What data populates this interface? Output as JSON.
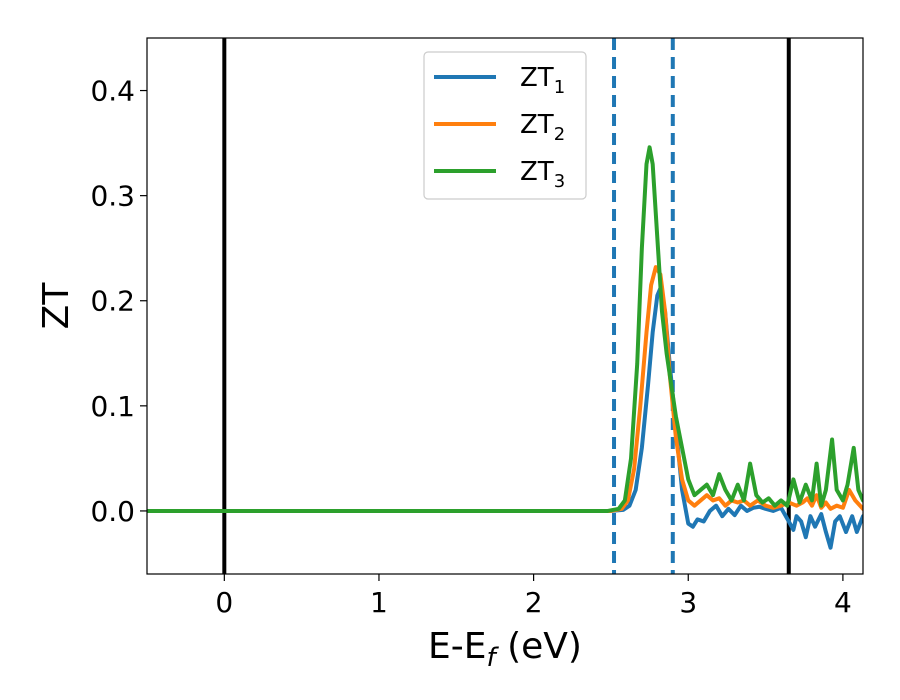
{
  "chart_data": {
    "type": "line",
    "title": "",
    "xlabel": {
      "main": "E-E",
      "sub": "f",
      "suffix": " (eV)"
    },
    "ylabel": "ZT",
    "xlim": [
      -0.5,
      4.13
    ],
    "ylim": [
      -0.06,
      0.45
    ],
    "xticks": [
      0,
      1,
      2,
      3,
      4
    ],
    "yticks": [
      0.0,
      0.1,
      0.2,
      0.3,
      0.4
    ],
    "xtick_labels": [
      "0",
      "1",
      "2",
      "3",
      "4"
    ],
    "ytick_labels": [
      "0.0",
      "0.1",
      "0.2",
      "0.3",
      "0.4"
    ],
    "grid": false,
    "legend_position": "top-center",
    "vlines_solid": [
      0.0,
      3.65
    ],
    "vlines_dashed": [
      2.52,
      2.9
    ],
    "series": [
      {
        "name": "ZT",
        "subscript": "1",
        "color": "#1f77b4",
        "points": [
          [
            -0.5,
            0.0
          ],
          [
            2.5,
            0.0
          ],
          [
            2.58,
            0.001
          ],
          [
            2.62,
            0.005
          ],
          [
            2.66,
            0.02
          ],
          [
            2.7,
            0.06
          ],
          [
            2.74,
            0.12
          ],
          [
            2.77,
            0.17
          ],
          [
            2.8,
            0.205
          ],
          [
            2.82,
            0.212
          ],
          [
            2.85,
            0.19
          ],
          [
            2.88,
            0.14
          ],
          [
            2.92,
            0.08
          ],
          [
            2.96,
            0.02
          ],
          [
            3.0,
            -0.012
          ],
          [
            3.03,
            -0.015
          ],
          [
            3.06,
            -0.008
          ],
          [
            3.1,
            -0.01
          ],
          [
            3.14,
            0.0
          ],
          [
            3.18,
            0.005
          ],
          [
            3.22,
            -0.005
          ],
          [
            3.26,
            0.002
          ],
          [
            3.3,
            -0.004
          ],
          [
            3.34,
            0.005
          ],
          [
            3.38,
            0.0
          ],
          [
            3.42,
            0.003
          ],
          [
            3.46,
            0.004
          ],
          [
            3.5,
            0.002
          ],
          [
            3.55,
            0.0
          ],
          [
            3.6,
            0.003
          ],
          [
            3.65,
            -0.01
          ],
          [
            3.68,
            -0.018
          ],
          [
            3.7,
            -0.005
          ],
          [
            3.73,
            -0.01
          ],
          [
            3.76,
            -0.025
          ],
          [
            3.79,
            -0.005
          ],
          [
            3.82,
            -0.015
          ],
          [
            3.86,
            -0.003
          ],
          [
            3.89,
            -0.02
          ],
          [
            3.92,
            -0.035
          ],
          [
            3.95,
            -0.01
          ],
          [
            3.98,
            -0.005
          ],
          [
            4.02,
            -0.02
          ],
          [
            4.06,
            -0.005
          ],
          [
            4.09,
            -0.02
          ],
          [
            4.13,
            -0.005
          ]
        ]
      },
      {
        "name": "ZT",
        "subscript": "2",
        "color": "#ff7f0e",
        "points": [
          [
            -0.5,
            0.0
          ],
          [
            2.5,
            0.0
          ],
          [
            2.57,
            0.002
          ],
          [
            2.61,
            0.01
          ],
          [
            2.65,
            0.04
          ],
          [
            2.69,
            0.1
          ],
          [
            2.73,
            0.17
          ],
          [
            2.76,
            0.215
          ],
          [
            2.79,
            0.232
          ],
          [
            2.82,
            0.225
          ],
          [
            2.85,
            0.19
          ],
          [
            2.88,
            0.13
          ],
          [
            2.92,
            0.07
          ],
          [
            2.96,
            0.03
          ],
          [
            3.0,
            0.01
          ],
          [
            3.04,
            0.005
          ],
          [
            3.08,
            0.01
          ],
          [
            3.12,
            0.015
          ],
          [
            3.16,
            0.01
          ],
          [
            3.2,
            0.012
          ],
          [
            3.24,
            0.005
          ],
          [
            3.28,
            0.01
          ],
          [
            3.32,
            0.008
          ],
          [
            3.36,
            0.01
          ],
          [
            3.4,
            0.005
          ],
          [
            3.45,
            0.01
          ],
          [
            3.5,
            0.005
          ],
          [
            3.55,
            0.003
          ],
          [
            3.6,
            0.005
          ],
          [
            3.65,
            0.008
          ],
          [
            3.7,
            0.005
          ],
          [
            3.74,
            0.008
          ],
          [
            3.77,
            0.012
          ],
          [
            3.8,
            0.005
          ],
          [
            3.83,
            0.015
          ],
          [
            3.86,
            0.003
          ],
          [
            3.89,
            0.008
          ],
          [
            3.92,
            0.002
          ],
          [
            3.96,
            0.005
          ],
          [
            4.0,
            0.003
          ],
          [
            4.04,
            0.02
          ],
          [
            4.08,
            0.01
          ],
          [
            4.13,
            0.002
          ]
        ]
      },
      {
        "name": "ZT",
        "subscript": "3",
        "color": "#2ca02c",
        "points": [
          [
            -0.5,
            0.0
          ],
          [
            2.48,
            0.0
          ],
          [
            2.55,
            0.002
          ],
          [
            2.59,
            0.01
          ],
          [
            2.63,
            0.05
          ],
          [
            2.67,
            0.14
          ],
          [
            2.7,
            0.25
          ],
          [
            2.73,
            0.33
          ],
          [
            2.75,
            0.346
          ],
          [
            2.77,
            0.33
          ],
          [
            2.8,
            0.26
          ],
          [
            2.83,
            0.19
          ],
          [
            2.86,
            0.15
          ],
          [
            2.89,
            0.12
          ],
          [
            2.92,
            0.09
          ],
          [
            2.96,
            0.06
          ],
          [
            3.0,
            0.03
          ],
          [
            3.04,
            0.015
          ],
          [
            3.08,
            0.02
          ],
          [
            3.12,
            0.025
          ],
          [
            3.16,
            0.015
          ],
          [
            3.2,
            0.035
          ],
          [
            3.24,
            0.02
          ],
          [
            3.28,
            0.01
          ],
          [
            3.32,
            0.025
          ],
          [
            3.36,
            0.01
          ],
          [
            3.4,
            0.045
          ],
          [
            3.44,
            0.015
          ],
          [
            3.48,
            0.008
          ],
          [
            3.52,
            0.012
          ],
          [
            3.56,
            0.005
          ],
          [
            3.6,
            0.01
          ],
          [
            3.64,
            0.005
          ],
          [
            3.68,
            0.03
          ],
          [
            3.72,
            0.008
          ],
          [
            3.76,
            0.025
          ],
          [
            3.8,
            0.01
          ],
          [
            3.83,
            0.045
          ],
          [
            3.86,
            0.005
          ],
          [
            3.89,
            0.02
          ],
          [
            3.93,
            0.068
          ],
          [
            3.96,
            0.02
          ],
          [
            4.0,
            0.01
          ],
          [
            4.03,
            0.025
          ],
          [
            4.07,
            0.06
          ],
          [
            4.1,
            0.02
          ],
          [
            4.13,
            0.01
          ]
        ]
      }
    ]
  }
}
